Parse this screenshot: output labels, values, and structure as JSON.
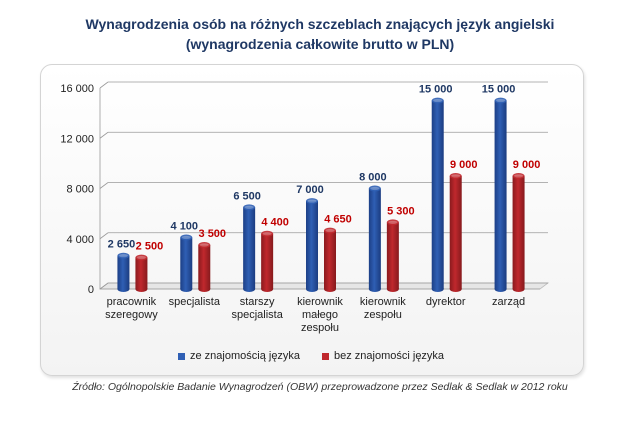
{
  "title_line1": "Wynagrodzenia osób na różnych szczeblach znających język angielski",
  "title_line2": "(wynagrodzenia całkowite brutto w PLN)",
  "source": "Źródło: Ogólnopolskie Badanie Wynagrodzeń (OBW) przeprowadzone przez Sedlak & Sedlak w 2012 roku",
  "colors": {
    "series1": "#2f5fb4",
    "series2": "#c0282d",
    "label1": "#1f3864",
    "label2": "#c00000"
  },
  "chart_data": {
    "type": "bar",
    "categories": [
      [
        "pracownik",
        "szeregowy"
      ],
      [
        "specjalista"
      ],
      [
        "starszy",
        "specjalista"
      ],
      [
        "kierownik",
        "małego",
        "zespołu"
      ],
      [
        "kierownik",
        "zespołu"
      ],
      [
        "dyrektor"
      ],
      [
        "zarząd"
      ]
    ],
    "series": [
      {
        "name": "ze znajomością języka",
        "values": [
          2650,
          4100,
          6500,
          7000,
          8000,
          15000,
          15000
        ],
        "labels": [
          "2 650",
          "4 100",
          "6 500",
          "7 000",
          "8 000",
          "15 000",
          "15 000"
        ]
      },
      {
        "name": "bez znajomości języka",
        "values": [
          2500,
          3500,
          4400,
          4650,
          5300,
          9000,
          9000
        ],
        "labels": [
          "2 500",
          "3 500",
          "4 400",
          "4 650",
          "5 300",
          "9 000",
          "9 000"
        ]
      }
    ],
    "ylim": [
      0,
      16000
    ],
    "yticks": [
      0,
      4000,
      8000,
      12000,
      16000
    ],
    "ytick_labels": [
      "0",
      "4 000",
      "8 000",
      "12 000",
      "16 000"
    ],
    "grid": true,
    "legend_position": "bottom"
  }
}
